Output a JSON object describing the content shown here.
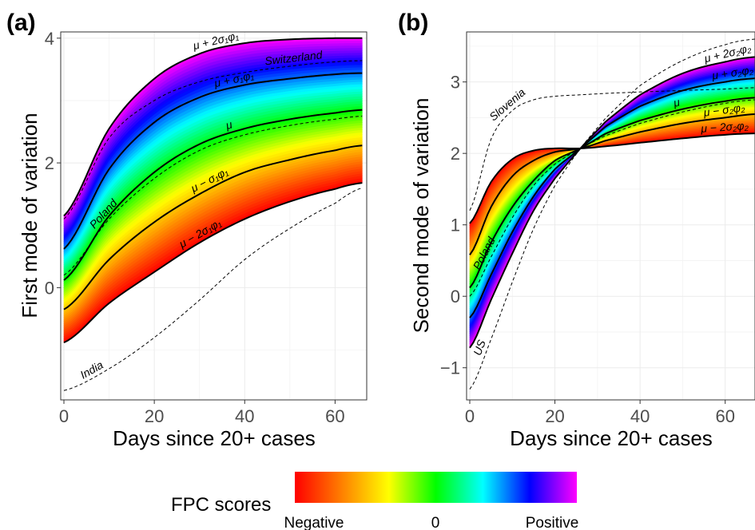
{
  "colors": {
    "spectrum": [
      "#ff0000",
      "#ff8000",
      "#ffff00",
      "#00ff00",
      "#00ffff",
      "#0000ff",
      "#ff00ff"
    ],
    "curve": "#000000",
    "grid": "#ebebeb"
  },
  "legend": {
    "title": "FPC scores",
    "labels": [
      "Negative",
      "0",
      "Positive"
    ]
  },
  "chart_data": [
    {
      "type": "line",
      "panel": "(a)",
      "xlabel": "Days since 20+ cases",
      "ylabel": "First mode of variation",
      "xlim": [
        0,
        67
      ],
      "ylim": [
        -1.8,
        4.1
      ],
      "xticks": [
        0,
        20,
        40,
        60
      ],
      "yticks": [
        0,
        2,
        4
      ],
      "grid": true,
      "x": [
        0,
        10,
        20,
        30,
        40,
        50,
        60,
        66
      ],
      "series": [
        {
          "name": "μ + 2σ₁φ₁",
          "label_x": 34,
          "values": [
            1.15,
            2.55,
            3.35,
            3.75,
            3.92,
            3.98,
            4.0,
            4.0
          ]
        },
        {
          "name": "μ + σ₁φ₁",
          "label_x": 38,
          "values": [
            0.62,
            1.9,
            2.65,
            3.05,
            3.25,
            3.35,
            3.42,
            3.44
          ]
        },
        {
          "name": "μ",
          "label_x": 37,
          "values": [
            0.12,
            1.15,
            1.85,
            2.3,
            2.55,
            2.7,
            2.8,
            2.85
          ]
        },
        {
          "name": "μ − σ₁φ₁",
          "label_x": 33,
          "values": [
            -0.35,
            0.45,
            1.05,
            1.5,
            1.85,
            2.05,
            2.2,
            2.28
          ]
        },
        {
          "name": "μ − 2σ₁φ₁",
          "label_x": 31,
          "values": [
            -0.88,
            -0.25,
            0.25,
            0.72,
            1.1,
            1.38,
            1.58,
            1.68
          ]
        }
      ],
      "countries": [
        {
          "name": "Switzerland",
          "label_x": 51,
          "values": [
            1.1,
            2.4,
            3.0,
            3.3,
            3.45,
            3.55,
            3.62,
            3.64
          ],
          "label_color": "#ffffff"
        },
        {
          "name": "Poland",
          "label_x": 10,
          "values": [
            0.2,
            1.1,
            1.75,
            2.2,
            2.45,
            2.6,
            2.7,
            2.75
          ],
          "label_color": "#000000"
        },
        {
          "name": "India",
          "label_x": 7,
          "values": [
            -1.65,
            -1.3,
            -0.8,
            -0.2,
            0.45,
            0.95,
            1.35,
            1.6
          ],
          "label_color": "#000000"
        }
      ]
    },
    {
      "type": "line",
      "panel": "(b)",
      "xlabel": "Days since 20+ cases",
      "ylabel": "Second mode of variation",
      "xlim": [
        0,
        67
      ],
      "ylim": [
        -1.45,
        3.7
      ],
      "xticks": [
        0,
        20,
        40,
        60
      ],
      "yticks": [
        -1,
        0,
        1,
        2,
        3
      ],
      "grid": true,
      "x": [
        0,
        5,
        10,
        15,
        20,
        26,
        32,
        40,
        50,
        60,
        67
      ],
      "series": [
        {
          "name": "μ + 2σ₂φ₂",
          "label_x": 61,
          "values": [
            -0.72,
            -0.05,
            0.6,
            1.2,
            1.65,
            2.07,
            2.45,
            2.82,
            3.12,
            3.28,
            3.35
          ]
        },
        {
          "name": "μ + σ₂φ₂",
          "label_x": 62,
          "values": [
            -0.3,
            0.3,
            0.9,
            1.4,
            1.78,
            2.07,
            2.38,
            2.66,
            2.88,
            3.0,
            3.05
          ]
        },
        {
          "name": "μ",
          "label_x": 49,
          "values": [
            0.12,
            0.75,
            1.25,
            1.62,
            1.9,
            2.07,
            2.28,
            2.46,
            2.62,
            2.73,
            2.78
          ]
        },
        {
          "name": "μ − σ₂φ₂",
          "label_x": 60,
          "values": [
            0.58,
            1.25,
            1.68,
            1.9,
            2.02,
            2.07,
            2.18,
            2.3,
            2.42,
            2.5,
            2.55
          ]
        },
        {
          "name": "μ − 2σ₂φ₂",
          "label_x": 60,
          "values": [
            1.02,
            1.6,
            1.92,
            2.04,
            2.07,
            2.07,
            2.1,
            2.15,
            2.21,
            2.26,
            2.28
          ]
        }
      ],
      "countries": [
        {
          "name": "Slovenia",
          "label_x": 10,
          "values": [
            1.2,
            2.2,
            2.6,
            2.75,
            2.8,
            2.82,
            2.84,
            2.86,
            2.88,
            2.9,
            2.92
          ],
          "label_color": "#000000"
        },
        {
          "name": "Poland",
          "label_x": 5,
          "values": [
            0.0,
            0.55,
            1.1,
            1.55,
            1.85,
            2.07,
            2.25,
            2.42,
            2.58,
            2.7,
            2.75
          ],
          "label_color": "#000000"
        },
        {
          "name": "US",
          "label_x": 4,
          "values": [
            -1.3,
            -0.6,
            0.2,
            0.95,
            1.55,
            2.07,
            2.5,
            2.95,
            3.3,
            3.52,
            3.6
          ],
          "label_color": "#000000"
        }
      ]
    }
  ]
}
